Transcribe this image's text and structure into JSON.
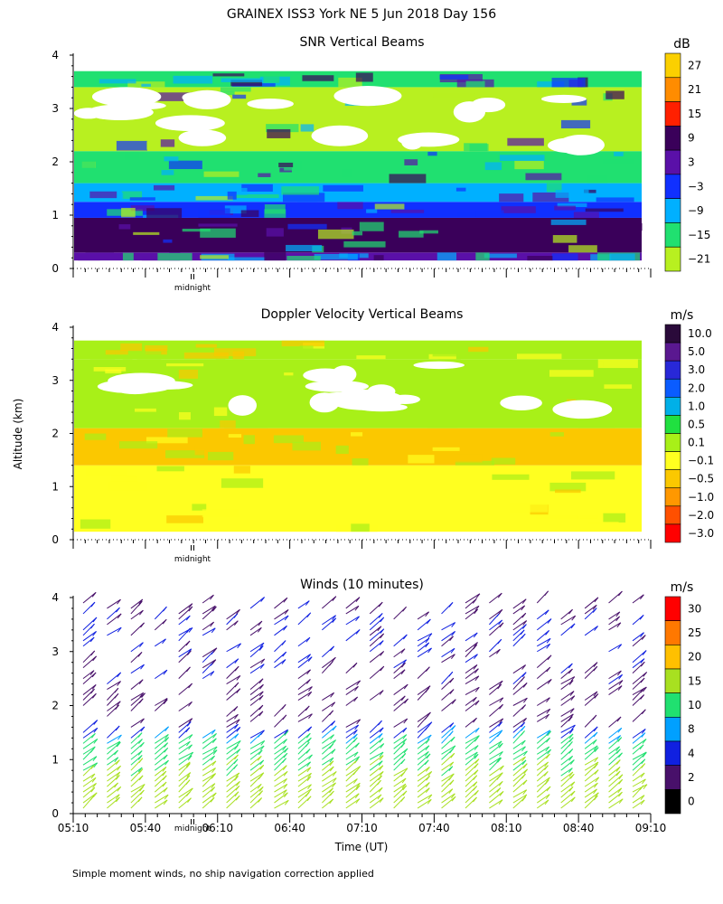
{
  "title": "GRAINEX ISS3 York NE   5 Jun 2018 Day 156",
  "y_axis_label": "Altitude (km)",
  "midnight_label": "midnight",
  "footnote": "Simple moment winds, no ship navigation correction applied",
  "chart_data": [
    {
      "type": "heatmap",
      "title": "SNR Vertical Beams",
      "ylabel": "",
      "ylim": [
        0,
        4
      ],
      "yticks": [
        "0",
        "1",
        "2",
        "3",
        "4"
      ],
      "legend_title": "dB",
      "scale_labels": [
        "27",
        "21",
        "15",
        "9",
        "3",
        "−3",
        "−9",
        "−15",
        "−21"
      ],
      "scale_colors": [
        "#fbd000",
        "#ff8c00",
        "#ff2000",
        "#3a005a",
        "#5a10a8",
        "#1030ff",
        "#00b0ff",
        "#20e070",
        "#b8f020"
      ],
      "layers": [
        {
          "from_km": 0.15,
          "to_km": 0.3,
          "level": "3"
        },
        {
          "from_km": 0.3,
          "to_km": 0.95,
          "level": "9"
        },
        {
          "from_km": 0.95,
          "to_km": 1.25,
          "level": "-3"
        },
        {
          "from_km": 1.25,
          "to_km": 1.6,
          "level": "-9"
        },
        {
          "from_km": 1.6,
          "to_km": 2.2,
          "level": "-15"
        },
        {
          "from_km": 2.2,
          "to_km": 3.4,
          "level": "-21"
        },
        {
          "from_km": 3.4,
          "to_km": 3.7,
          "level": "-15"
        }
      ]
    },
    {
      "type": "heatmap",
      "title": "Doppler Velocity Vertical Beams",
      "ylabel": "",
      "ylim": [
        0,
        4
      ],
      "yticks": [
        "0",
        "1",
        "2",
        "3",
        "4"
      ],
      "legend_title": "m/s",
      "scale_labels": [
        "10.0",
        "5.0",
        "3.0",
        "2.0",
        "1.0",
        "0.5",
        "0.1",
        "−0.1",
        "−0.5",
        "−1.0",
        "−2.0",
        "−3.0"
      ],
      "scale_colors": [
        "#2a0a3a",
        "#5a1890",
        "#2828d8",
        "#0a5cff",
        "#00b0e8",
        "#20e040",
        "#a8f018",
        "#ffff20",
        "#fbc800",
        "#ff9800",
        "#ff5000",
        "#ff0000"
      ],
      "layers": [
        {
          "from_km": 0.15,
          "to_km": 1.4,
          "level": "-0.1"
        },
        {
          "from_km": 1.4,
          "to_km": 2.1,
          "level": "-0.5"
        },
        {
          "from_km": 2.1,
          "to_km": 3.4,
          "level": "0.1"
        },
        {
          "from_km": 3.4,
          "to_km": 3.75,
          "level": "0.1"
        }
      ]
    },
    {
      "type": "scatter",
      "title": "Winds (10 minutes)",
      "ylabel": "",
      "ylim": [
        0,
        4
      ],
      "yticks": [
        "0",
        "1",
        "2",
        "3",
        "4"
      ],
      "legend_title": "m/s",
      "scale_labels": [
        "30",
        "25",
        "20",
        "15",
        "10",
        "8",
        "4",
        "2",
        "0"
      ],
      "scale_colors": [
        "#ff0000",
        "#ff7800",
        "#ffc000",
        "#a8e020",
        "#20e070",
        "#00a0ff",
        "#1020e0",
        "#48106a",
        "#000000"
      ],
      "x_tick_labels": [
        "05:10",
        "05:40",
        "06:10",
        "06:40",
        "07:10",
        "07:40",
        "08:10",
        "08:40",
        "09:10"
      ],
      "xlabel": "Time (UT)",
      "wind_speed_by_altitude_ms": [
        {
          "altitude_km": 0.2,
          "speed": 18
        },
        {
          "altitude_km": 0.6,
          "speed": 16
        },
        {
          "altitude_km": 1.0,
          "speed": 14
        },
        {
          "altitude_km": 1.3,
          "speed": 10
        },
        {
          "altitude_km": 1.6,
          "speed": 3
        },
        {
          "altitude_km": 2.2,
          "speed": 3
        },
        {
          "altitude_km": 3.2,
          "speed": 5
        },
        {
          "altitude_km": 3.9,
          "speed": 3
        }
      ]
    }
  ]
}
